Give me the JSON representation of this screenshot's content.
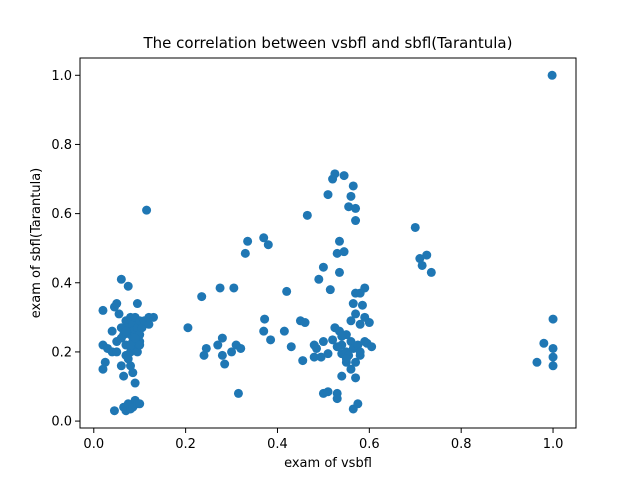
{
  "chart_data": {
    "type": "scatter",
    "title": "The correlation between vsbfl and sbfl(Tarantula)",
    "xlabel": "exam of vsbfl",
    "ylabel": "exam of sbfl(Tarantula)",
    "xlim": [
      -0.03,
      1.05
    ],
    "ylim": [
      -0.02,
      1.05
    ],
    "xticks": [
      0.0,
      0.2,
      0.4,
      0.6,
      0.8,
      1.0
    ],
    "yticks": [
      0.0,
      0.2,
      0.4,
      0.6,
      0.8,
      1.0
    ],
    "xtick_labels": [
      "0.0",
      "0.2",
      "0.4",
      "0.6",
      "0.8",
      "1.0"
    ],
    "ytick_labels": [
      "0.0",
      "0.2",
      "0.4",
      "0.6",
      "0.8",
      "1.0"
    ],
    "grid": false,
    "marker_color": "#1f77b4",
    "points": [
      [
        0.02,
        0.32
      ],
      [
        0.02,
        0.22
      ],
      [
        0.025,
        0.17
      ],
      [
        0.02,
        0.15
      ],
      [
        0.03,
        0.21
      ],
      [
        0.04,
        0.2
      ],
      [
        0.045,
        0.33
      ],
      [
        0.045,
        0.03
      ],
      [
        0.05,
        0.34
      ],
      [
        0.05,
        0.2
      ],
      [
        0.055,
        0.31
      ],
      [
        0.06,
        0.24
      ],
      [
        0.06,
        0.16
      ],
      [
        0.06,
        0.41
      ],
      [
        0.065,
        0.25
      ],
      [
        0.065,
        0.13
      ],
      [
        0.065,
        0.04
      ],
      [
        0.07,
        0.29
      ],
      [
        0.07,
        0.22
      ],
      [
        0.07,
        0.19
      ],
      [
        0.07,
        0.03
      ],
      [
        0.075,
        0.39
      ],
      [
        0.075,
        0.27
      ],
      [
        0.075,
        0.18
      ],
      [
        0.075,
        0.05
      ],
      [
        0.08,
        0.3
      ],
      [
        0.08,
        0.25
      ],
      [
        0.08,
        0.2
      ],
      [
        0.08,
        0.16
      ],
      [
        0.08,
        0.035
      ],
      [
        0.085,
        0.28
      ],
      [
        0.085,
        0.26
      ],
      [
        0.085,
        0.23
      ],
      [
        0.085,
        0.14
      ],
      [
        0.085,
        0.04
      ],
      [
        0.09,
        0.3
      ],
      [
        0.09,
        0.25
      ],
      [
        0.09,
        0.21
      ],
      [
        0.09,
        0.06
      ],
      [
        0.09,
        0.11
      ],
      [
        0.095,
        0.34
      ],
      [
        0.095,
        0.27
      ],
      [
        0.095,
        0.2
      ],
      [
        0.095,
        0.05
      ],
      [
        0.1,
        0.29
      ],
      [
        0.1,
        0.25
      ],
      [
        0.1,
        0.23
      ],
      [
        0.1,
        0.22
      ],
      [
        0.1,
        0.05
      ],
      [
        0.105,
        0.27
      ],
      [
        0.11,
        0.29
      ],
      [
        0.115,
        0.61
      ],
      [
        0.12,
        0.28
      ],
      [
        0.12,
        0.3
      ],
      [
        0.13,
        0.3
      ],
      [
        0.06,
        0.27
      ],
      [
        0.07,
        0.26
      ],
      [
        0.08,
        0.22
      ],
      [
        0.09,
        0.24
      ],
      [
        0.05,
        0.23
      ],
      [
        0.04,
        0.26
      ],
      [
        0.205,
        0.27
      ],
      [
        0.235,
        0.36
      ],
      [
        0.24,
        0.19
      ],
      [
        0.245,
        0.21
      ],
      [
        0.27,
        0.22
      ],
      [
        0.275,
        0.385
      ],
      [
        0.28,
        0.24
      ],
      [
        0.28,
        0.19
      ],
      [
        0.285,
        0.165
      ],
      [
        0.3,
        0.2
      ],
      [
        0.305,
        0.385
      ],
      [
        0.31,
        0.22
      ],
      [
        0.315,
        0.08
      ],
      [
        0.32,
        0.21
      ],
      [
        0.33,
        0.485
      ],
      [
        0.335,
        0.52
      ],
      [
        0.37,
        0.26
      ],
      [
        0.37,
        0.53
      ],
      [
        0.372,
        0.295
      ],
      [
        0.38,
        0.51
      ],
      [
        0.385,
        0.235
      ],
      [
        0.415,
        0.26
      ],
      [
        0.42,
        0.375
      ],
      [
        0.43,
        0.215
      ],
      [
        0.45,
        0.29
      ],
      [
        0.455,
        0.175
      ],
      [
        0.46,
        0.285
      ],
      [
        0.465,
        0.595
      ],
      [
        0.48,
        0.22
      ],
      [
        0.48,
        0.185
      ],
      [
        0.485,
        0.21
      ],
      [
        0.49,
        0.41
      ],
      [
        0.495,
        0.185
      ],
      [
        0.5,
        0.445
      ],
      [
        0.5,
        0.23
      ],
      [
        0.5,
        0.08
      ],
      [
        0.51,
        0.655
      ],
      [
        0.51,
        0.085
      ],
      [
        0.51,
        0.195
      ],
      [
        0.515,
        0.38
      ],
      [
        0.52,
        0.235
      ],
      [
        0.52,
        0.7
      ],
      [
        0.525,
        0.715
      ],
      [
        0.525,
        0.27
      ],
      [
        0.53,
        0.485
      ],
      [
        0.53,
        0.08
      ],
      [
        0.53,
        0.065
      ],
      [
        0.535,
        0.52
      ],
      [
        0.535,
        0.43
      ],
      [
        0.535,
        0.26
      ],
      [
        0.54,
        0.22
      ],
      [
        0.54,
        0.195
      ],
      [
        0.54,
        0.13
      ],
      [
        0.545,
        0.71
      ],
      [
        0.545,
        0.49
      ],
      [
        0.55,
        0.25
      ],
      [
        0.55,
        0.2
      ],
      [
        0.55,
        0.17
      ],
      [
        0.555,
        0.62
      ],
      [
        0.555,
        0.19
      ],
      [
        0.56,
        0.65
      ],
      [
        0.56,
        0.29
      ],
      [
        0.56,
        0.23
      ],
      [
        0.56,
        0.15
      ],
      [
        0.565,
        0.68
      ],
      [
        0.565,
        0.34
      ],
      [
        0.565,
        0.21
      ],
      [
        0.565,
        0.035
      ],
      [
        0.57,
        0.615
      ],
      [
        0.57,
        0.58
      ],
      [
        0.57,
        0.37
      ],
      [
        0.57,
        0.31
      ],
      [
        0.57,
        0.17
      ],
      [
        0.57,
        0.125
      ],
      [
        0.575,
        0.22
      ],
      [
        0.575,
        0.05
      ],
      [
        0.58,
        0.37
      ],
      [
        0.58,
        0.28
      ],
      [
        0.58,
        0.19
      ],
      [
        0.585,
        0.335
      ],
      [
        0.59,
        0.3
      ],
      [
        0.59,
        0.23
      ],
      [
        0.59,
        0.385
      ],
      [
        0.595,
        0.225
      ],
      [
        0.6,
        0.285
      ],
      [
        0.605,
        0.215
      ],
      [
        0.58,
        0.2
      ],
      [
        0.55,
        0.18
      ],
      [
        0.53,
        0.215
      ],
      [
        0.54,
        0.245
      ],
      [
        0.7,
        0.56
      ],
      [
        0.71,
        0.47
      ],
      [
        0.715,
        0.45
      ],
      [
        0.725,
        0.48
      ],
      [
        0.735,
        0.43
      ],
      [
        0.965,
        0.17
      ],
      [
        0.98,
        0.225
      ],
      [
        0.998,
        1.0
      ],
      [
        1.0,
        0.295
      ],
      [
        1.0,
        0.21
      ],
      [
        1.0,
        0.185
      ],
      [
        1.0,
        0.16
      ]
    ]
  }
}
